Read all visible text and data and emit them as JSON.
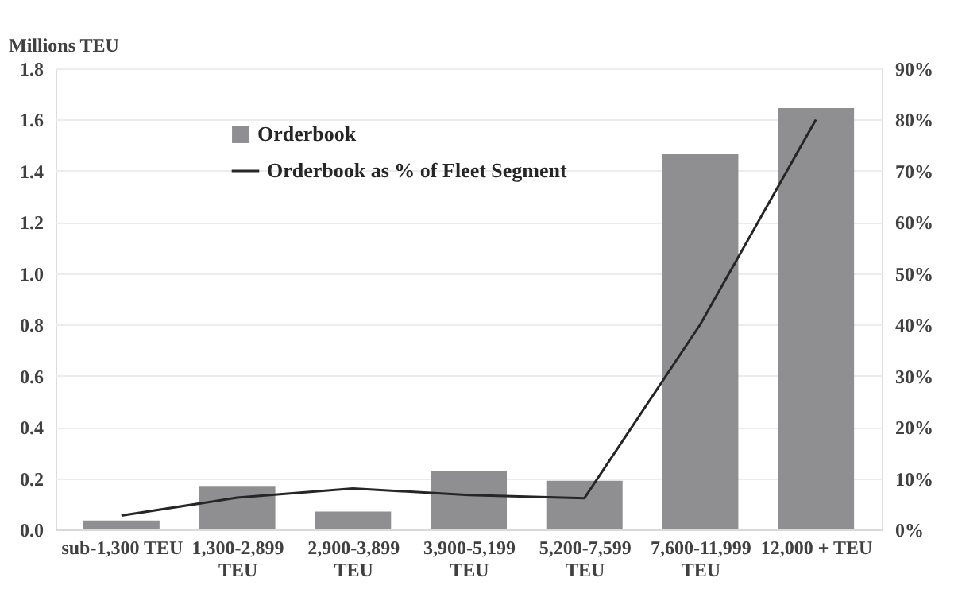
{
  "chart_data": {
    "type": "bar",
    "ylabel": "Millions TEU",
    "categories": [
      "sub-1,300 TEU",
      "1,300-2,899 TEU",
      "2,900-3,899 TEU",
      "3,900-5,199 TEU",
      "5,200-7,599 TEU",
      "7,600-11,999 TEU",
      "12,000 + TEU"
    ],
    "series": [
      {
        "name": "Orderbook",
        "color": "#8f8f91",
        "values": [
          0.035,
          0.17,
          0.07,
          0.23,
          0.19,
          1.465,
          1.645
        ]
      },
      {
        "name": "Orderbook as % of Fleet Segment",
        "type": "line",
        "axis": "y2",
        "color": "#262626",
        "values": [
          2.7,
          6.2,
          8,
          6.7,
          6.1,
          40,
          80
        ]
      }
    ],
    "ylim": [
      0,
      1.8
    ],
    "yticks": [
      {
        "value": 0,
        "label": "0.0"
      },
      0.2,
      0.4,
      0.6,
      0.8,
      {
        "value": 1,
        "label": "1.0"
      },
      1.2,
      1.4,
      1.6,
      1.8
    ],
    "y2lim": [
      0,
      90
    ],
    "y2ticks": [
      {
        "value": 0,
        "label": "0%"
      },
      {
        "value": 10,
        "label": "10%"
      },
      {
        "value": 20,
        "label": "20%"
      },
      {
        "value": 30,
        "label": "30%"
      },
      {
        "value": 40,
        "label": "40%"
      },
      {
        "value": 50,
        "label": "50%"
      },
      {
        "value": 60,
        "label": "60%"
      },
      {
        "value": 70,
        "label": "70%"
      },
      {
        "value": 80,
        "label": "80%"
      },
      {
        "value": 90,
        "label": "90%"
      }
    ],
    "grid": "y",
    "legend": "top left"
  }
}
